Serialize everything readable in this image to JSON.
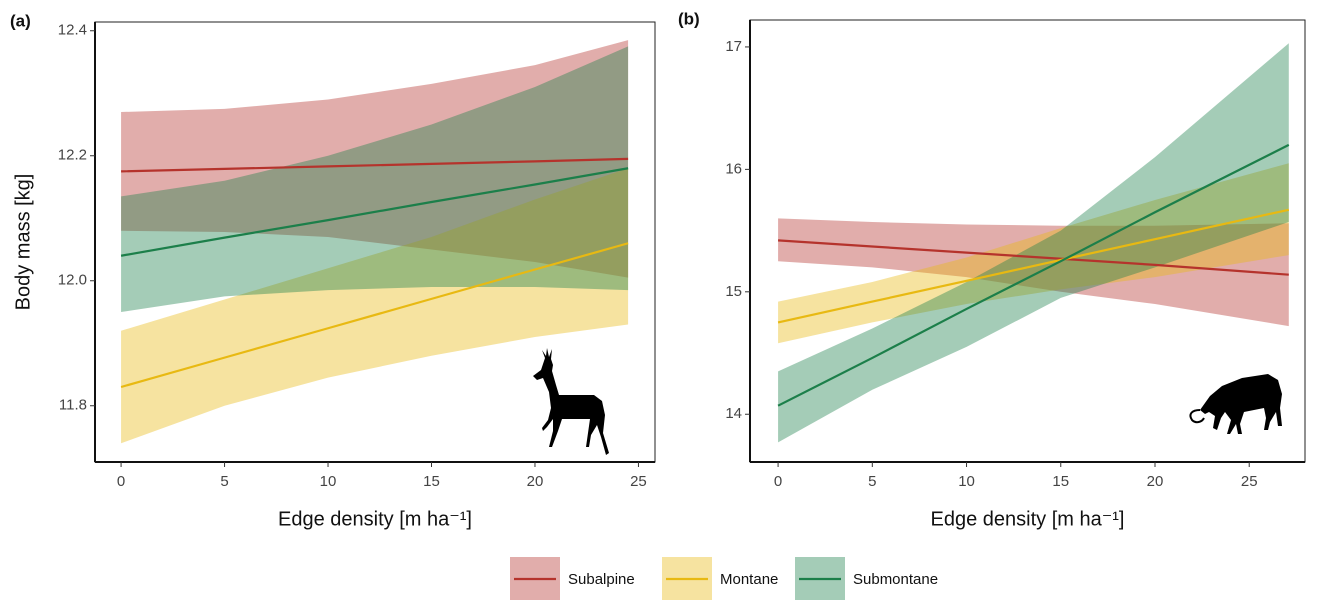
{
  "chart_data": [
    {
      "type": "line",
      "panel": "(a)",
      "ylabel": "Body mass [kg]",
      "xlabel": "Edge density [m ha⁻¹]",
      "xlim": [
        -1.26,
        25.8
      ],
      "xticks": [
        0,
        5,
        10,
        15,
        20,
        25
      ],
      "ylim": [
        11.71,
        12.414
      ],
      "yticks": [
        11.8,
        {
          "value": 12,
          "label": "12.0"
        },
        12.2,
        12.4
      ],
      "x": [
        0,
        5,
        10,
        15,
        20,
        24.5
      ],
      "series": [
        {
          "color": "#b5332c",
          "values": [
            12.175,
            12.179,
            12.183,
            12.187,
            12.191,
            12.195
          ],
          "upper": [
            12.27,
            12.275,
            12.29,
            12.315,
            12.345,
            12.385
          ],
          "lower": [
            12.08,
            12.078,
            12.07,
            12.05,
            12.03,
            12.005
          ]
        },
        {
          "color": "#e8b912",
          "values": [
            11.83,
            11.877,
            11.924,
            11.971,
            12.018,
            12.06
          ],
          "upper": [
            11.92,
            11.97,
            12.02,
            12.07,
            12.13,
            12.18
          ],
          "lower": [
            11.74,
            11.8,
            11.845,
            11.88,
            11.91,
            11.93
          ]
        },
        {
          "color": "#1c7f4a",
          "values": [
            12.04,
            12.069,
            12.097,
            12.126,
            12.154,
            12.18
          ],
          "upper": [
            12.135,
            12.16,
            12.2,
            12.25,
            12.31,
            12.375
          ],
          "lower": [
            11.95,
            11.975,
            11.985,
            11.99,
            11.99,
            11.985
          ]
        }
      ]
    },
    {
      "type": "line",
      "panel": "(b)",
      "xlabel": "Edge density [m ha⁻¹]",
      "xlim": [
        -1.49,
        27.96
      ],
      "xticks": [
        0,
        5,
        10,
        15,
        20,
        25
      ],
      "ylim": [
        13.61,
        17.22
      ],
      "yticks": [
        14,
        15,
        16,
        17
      ],
      "x": [
        0,
        5,
        10,
        15,
        20,
        27.1
      ],
      "series": [
        {
          "color": "#b5332c",
          "values": [
            15.42,
            15.37,
            15.32,
            15.27,
            15.22,
            15.14
          ],
          "upper": [
            15.6,
            15.57,
            15.55,
            15.54,
            15.54,
            15.56
          ],
          "lower": [
            15.25,
            15.2,
            15.12,
            15.0,
            14.9,
            14.72
          ]
        },
        {
          "color": "#e8b912",
          "values": [
            14.75,
            14.92,
            15.09,
            15.26,
            15.43,
            15.67
          ],
          "upper": [
            14.92,
            15.08,
            15.28,
            15.52,
            15.75,
            16.05
          ],
          "lower": [
            14.58,
            14.75,
            14.9,
            15.02,
            15.12,
            15.3
          ]
        },
        {
          "color": "#1c7f4a",
          "values": [
            14.07,
            14.46,
            14.86,
            15.25,
            15.65,
            16.2
          ],
          "upper": [
            14.35,
            14.7,
            15.08,
            15.5,
            16.1,
            17.03
          ],
          "lower": [
            13.77,
            14.2,
            14.55,
            14.95,
            15.2,
            15.57
          ]
        }
      ]
    }
  ],
  "legend": [
    {
      "name": "Subalpine",
      "color": "#b5332c"
    },
    {
      "name": "Montane",
      "color": "#e8b912"
    },
    {
      "name": "Submontane",
      "color": "#1c7f4a"
    }
  ]
}
